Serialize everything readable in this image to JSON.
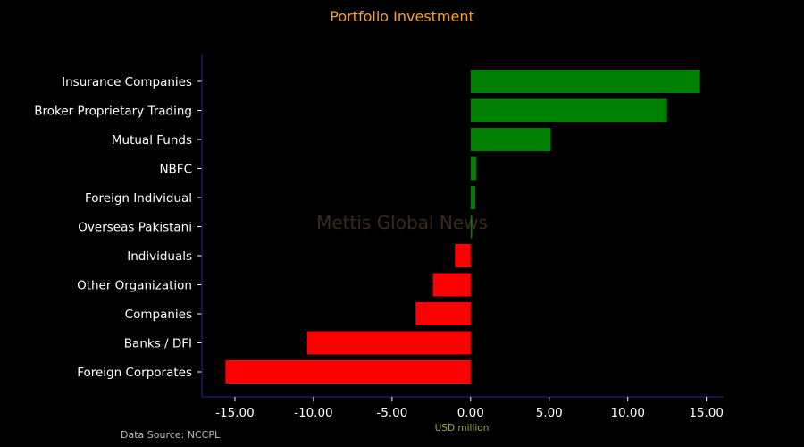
{
  "chart_data": {
    "type": "bar",
    "orientation": "horizontal",
    "title": "Portfolio Investment",
    "xlabel": "USD million",
    "ylabel": "",
    "categories": [
      "Insurance Companies",
      "Broker Proprietary Trading",
      "Mutual Funds",
      "NBFC",
      "Foreign Individual",
      "Overseas Pakistani",
      "Individuals",
      "Other Organization",
      "Companies",
      "Banks / DFI",
      "Foreign Corporates "
    ],
    "values": [
      14.6,
      12.5,
      5.1,
      0.35,
      0.3,
      0.1,
      -1.0,
      -2.4,
      -3.5,
      -10.4,
      -15.6
    ],
    "xlim": [
      -17.1,
      16.1
    ],
    "xticks": [
      -15,
      -10,
      -5,
      0,
      5,
      10,
      15
    ],
    "xtick_labels": [
      "-15.00",
      "-10.00",
      "-5.00",
      "0.00",
      "5.00",
      "10.00",
      "15.00"
    ],
    "grid": false,
    "colors": {
      "positive": "#008000",
      "negative": "#ff0000",
      "background": "#000000",
      "title": "#f0a030",
      "label_text": "#ffffff",
      "axis": "#1a237e",
      "xlabel": "#9aaa3a",
      "source": "#bbbbbb",
      "watermark": "#3a2a1a"
    }
  },
  "source_note": "Data Source: NCCPL",
  "watermark": "Mettis Global News"
}
